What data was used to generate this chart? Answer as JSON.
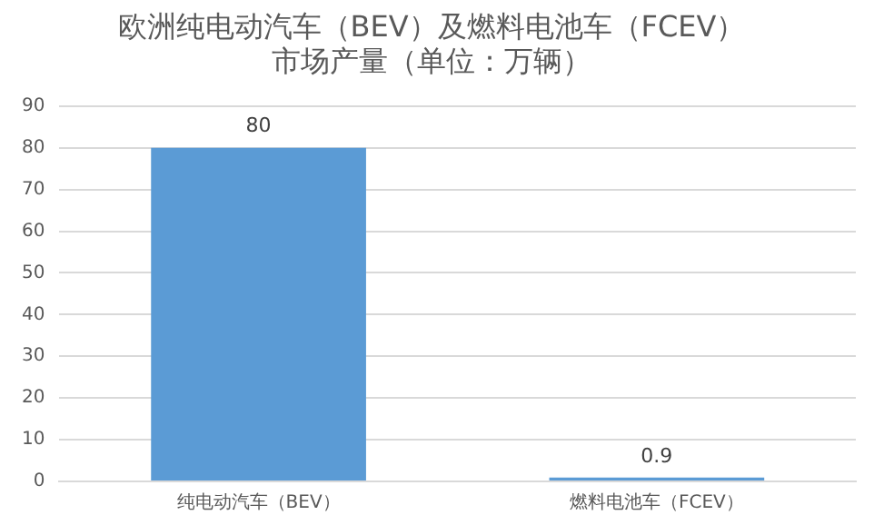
{
  "chart_data": {
    "type": "bar",
    "title": "欧洲纯电动汽车（BEV）及燃料电池车（FCEV）市场产量（单位：万辆）",
    "categories": [
      "纯电动汽车（BEV）",
      "燃料电池车（FCEV）"
    ],
    "values": [
      80,
      0.9
    ],
    "color": "#5b9bd5",
    "data_labels": true,
    "ylim": [
      0,
      90
    ],
    "yticks": [
      0,
      10,
      20,
      30,
      40,
      50,
      60,
      70,
      80,
      90
    ],
    "grid": "y",
    "legend": false
  }
}
